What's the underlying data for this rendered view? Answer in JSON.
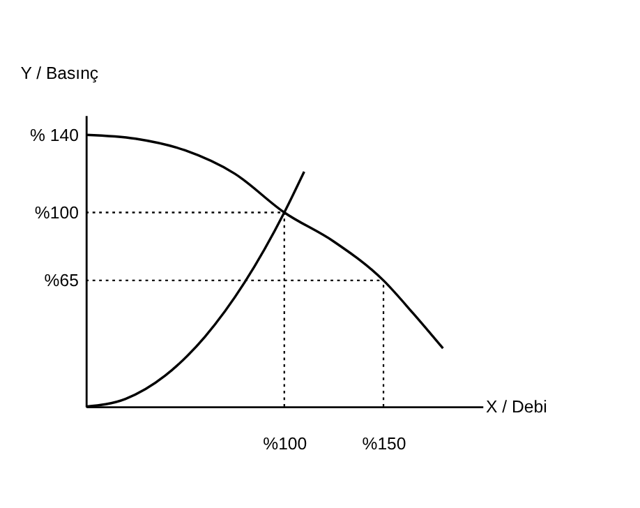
{
  "chart_data": {
    "type": "line",
    "xlabel": "X / Debi",
    "ylabel": "Y / Basınç",
    "xlim": [
      0,
      200
    ],
    "ylim": [
      0,
      150
    ],
    "xticks": [
      {
        "value": 100,
        "label": "%100"
      },
      {
        "value": 150,
        "label": "%150"
      }
    ],
    "yticks": [
      {
        "value": 65,
        "label": "%65"
      },
      {
        "value": 100,
        "label": "%100"
      },
      {
        "value": 140,
        "label": "% 140"
      }
    ],
    "grid": false,
    "marker": "none",
    "line_style": "solid",
    "series": [
      {
        "color": "#000000",
        "x": [
          0,
          20,
          40,
          60,
          80,
          100,
          110
        ],
        "values": [
          0,
          4,
          16,
          36,
          64,
          100,
          121
        ]
      },
      {
        "color": "#000000",
        "x": [
          0,
          25,
          50,
          75,
          100,
          125,
          150,
          165,
          180
        ],
        "values": [
          140,
          138,
          132,
          120,
          100,
          85,
          65,
          48,
          30
        ]
      }
    ],
    "ref_lines": [
      {
        "axis": "y",
        "value": 100,
        "line_style": "dotted",
        "color": "#000000"
      },
      {
        "axis": "y",
        "value": 65,
        "line_style": "dotted",
        "color": "#000000"
      },
      {
        "axis": "x",
        "value": 100,
        "line_style": "dotted",
        "color": "#000000"
      },
      {
        "axis": "x",
        "value": 150,
        "line_style": "dotted",
        "color": "#000000"
      }
    ]
  }
}
